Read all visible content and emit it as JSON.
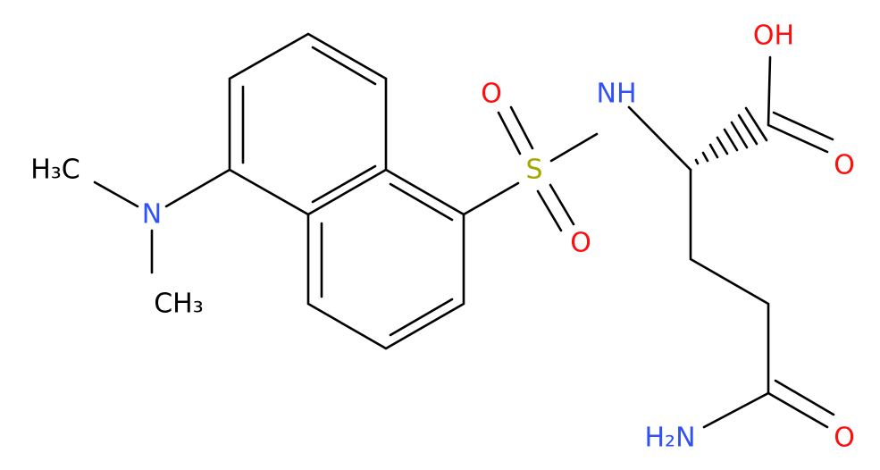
{
  "atoms": [
    {
      "label": "H₃C"
    },
    {
      "label": "N"
    },
    {
      "label": "CH₃"
    },
    {
      "label": "S"
    },
    {
      "label": "O"
    },
    {
      "label": "O"
    },
    {
      "label": "NH"
    },
    {
      "label": "OH"
    },
    {
      "label": "O"
    },
    {
      "label": "H₂N"
    },
    {
      "label": "O"
    }
  ]
}
